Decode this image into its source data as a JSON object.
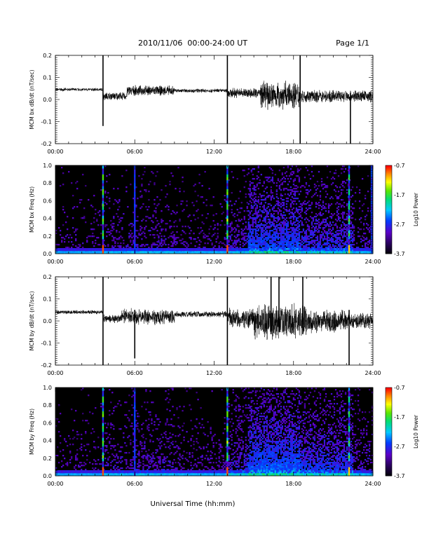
{
  "header": {
    "date_range": "2010/11/06  00:00-24:00 UT",
    "page": "Page 1/1"
  },
  "xaxis": {
    "title": "Universal Time (hh:mm)",
    "tick_labels": [
      "00:00",
      "06:00",
      "12:00",
      "18:00",
      "24:00"
    ]
  },
  "colorbar": {
    "label": "Log10 Power",
    "tick_labels": [
      "-0.7",
      "-1.7",
      "-2.7",
      "-3.7"
    ]
  },
  "chart_data": [
    {
      "type": "line",
      "ylabel": "MCM bx dB/dt (nT/sec)",
      "x_range_hours": [
        0,
        24
      ],
      "ylim": [
        -0.2,
        0.2
      ],
      "y_tick_labels": [
        "0.2",
        "0.1",
        "0.0",
        "-0.1",
        "-0.2"
      ],
      "segments": [
        {
          "x": [
            0,
            3.6
          ],
          "center": 0.045,
          "amplitude": 0.008
        },
        {
          "x": [
            3.6,
            5.4
          ],
          "center": 0.015,
          "amplitude": 0.02
        },
        {
          "x": [
            5.4,
            9
          ],
          "center": 0.04,
          "amplitude": 0.025
        },
        {
          "x": [
            9,
            13
          ],
          "center": 0.04,
          "amplitude": 0.01
        },
        {
          "x": [
            13,
            15.5
          ],
          "center": 0.03,
          "amplitude": 0.025
        },
        {
          "x": [
            15.5,
            18.5
          ],
          "center": 0.02,
          "amplitude": 0.07
        },
        {
          "x": [
            18.5,
            24
          ],
          "center": 0.015,
          "amplitude": 0.03
        }
      ],
      "spikes": [
        {
          "x": 3.6,
          "y_min": -0.12,
          "y_max": 0.21
        },
        {
          "x": 13.0,
          "y_min": -0.2,
          "y_max": 0.21
        },
        {
          "x": 18.5,
          "y_min": -0.2,
          "y_max": 0.2
        },
        {
          "x": 22.3,
          "y_min": -0.2,
          "y_max": 0.03
        }
      ]
    },
    {
      "type": "heatmap",
      "ylabel": "MCM bx Freq (Hz)",
      "x_range_hours": [
        0,
        24
      ],
      "ylim": [
        0.0,
        1.0
      ],
      "y_tick_labels": [
        "1.0",
        "0.8",
        "0.6",
        "0.4",
        "0.2",
        "0.0"
      ],
      "zlim": [
        -3.7,
        -0.7
      ],
      "activity": [
        {
          "x": [
            0,
            3.6
          ],
          "level": 0.15
        },
        {
          "x": [
            3.6,
            5.4
          ],
          "level": 0.25
        },
        {
          "x": [
            5.4,
            9
          ],
          "level": 0.3
        },
        {
          "x": [
            9,
            13
          ],
          "level": 0.2
        },
        {
          "x": [
            13,
            14.5
          ],
          "level": 0.4
        },
        {
          "x": [
            14.5,
            18.5
          ],
          "level": 0.8
        },
        {
          "x": [
            18.5,
            22.5
          ],
          "level": 0.6
        },
        {
          "x": [
            22.5,
            24
          ],
          "level": 0.3
        }
      ],
      "vertical_lines": [
        {
          "x": 3.6,
          "strength": 1.0
        },
        {
          "x": 6.0,
          "strength": 0.35
        },
        {
          "x": 13.0,
          "strength": 1.0
        },
        {
          "x": 22.2,
          "strength": 0.9
        },
        {
          "x": 23.9,
          "strength": 0.5
        }
      ]
    },
    {
      "type": "line",
      "ylabel": "MCM by dB/dt (nT/sec)",
      "x_range_hours": [
        0,
        24
      ],
      "ylim": [
        -0.2,
        0.2
      ],
      "y_tick_labels": [
        "0.2",
        "0.1",
        "0.0",
        "-0.1",
        "-0.2"
      ],
      "segments": [
        {
          "x": [
            0,
            3.6
          ],
          "center": 0.04,
          "amplitude": 0.01
        },
        {
          "x": [
            3.6,
            5
          ],
          "center": 0.01,
          "amplitude": 0.02
        },
        {
          "x": [
            5,
            9
          ],
          "center": 0.02,
          "amplitude": 0.04
        },
        {
          "x": [
            9,
            13
          ],
          "center": 0.03,
          "amplitude": 0.015
        },
        {
          "x": [
            13,
            15
          ],
          "center": 0.01,
          "amplitude": 0.05
        },
        {
          "x": [
            15,
            19
          ],
          "center": 0.0,
          "amplitude": 0.09
        },
        {
          "x": [
            19,
            22
          ],
          "center": 0.0,
          "amplitude": 0.06
        },
        {
          "x": [
            22,
            24
          ],
          "center": 0.0,
          "amplitude": 0.04
        }
      ],
      "spikes": [
        {
          "x": 3.6,
          "y_min": -0.2,
          "y_max": 0.2
        },
        {
          "x": 6.0,
          "y_min": -0.17,
          "y_max": 0.05
        },
        {
          "x": 13.0,
          "y_min": -0.2,
          "y_max": 0.2
        },
        {
          "x": 16.3,
          "y_min": -0.06,
          "y_max": 0.2
        },
        {
          "x": 16.9,
          "y_min": -0.05,
          "y_max": 0.2
        },
        {
          "x": 18.7,
          "y_min": -0.06,
          "y_max": 0.2
        },
        {
          "x": 22.2,
          "y_min": -0.2,
          "y_max": 0.05
        }
      ]
    },
    {
      "type": "heatmap",
      "ylabel": "MCM by Freq (Hz)",
      "x_range_hours": [
        0,
        24
      ],
      "ylim": [
        0.0,
        1.0
      ],
      "y_tick_labels": [
        "1.0",
        "0.8",
        "0.6",
        "0.4",
        "0.2",
        "0.0"
      ],
      "zlim": [
        -3.7,
        -0.7
      ],
      "activity": [
        {
          "x": [
            0,
            3.6
          ],
          "level": 0.15
        },
        {
          "x": [
            3.6,
            5.4
          ],
          "level": 0.3
        },
        {
          "x": [
            5.4,
            9
          ],
          "level": 0.35
        },
        {
          "x": [
            9,
            13
          ],
          "level": 0.25
        },
        {
          "x": [
            13,
            14.5
          ],
          "level": 0.5
        },
        {
          "x": [
            14.5,
            18.5
          ],
          "level": 0.9
        },
        {
          "x": [
            18.5,
            22.5
          ],
          "level": 0.7
        },
        {
          "x": [
            22.5,
            24
          ],
          "level": 0.35
        }
      ],
      "vertical_lines": [
        {
          "x": 3.6,
          "strength": 1.0
        },
        {
          "x": 6.0,
          "strength": 0.55
        },
        {
          "x": 13.0,
          "strength": 1.0
        },
        {
          "x": 22.2,
          "strength": 0.9
        }
      ]
    }
  ]
}
